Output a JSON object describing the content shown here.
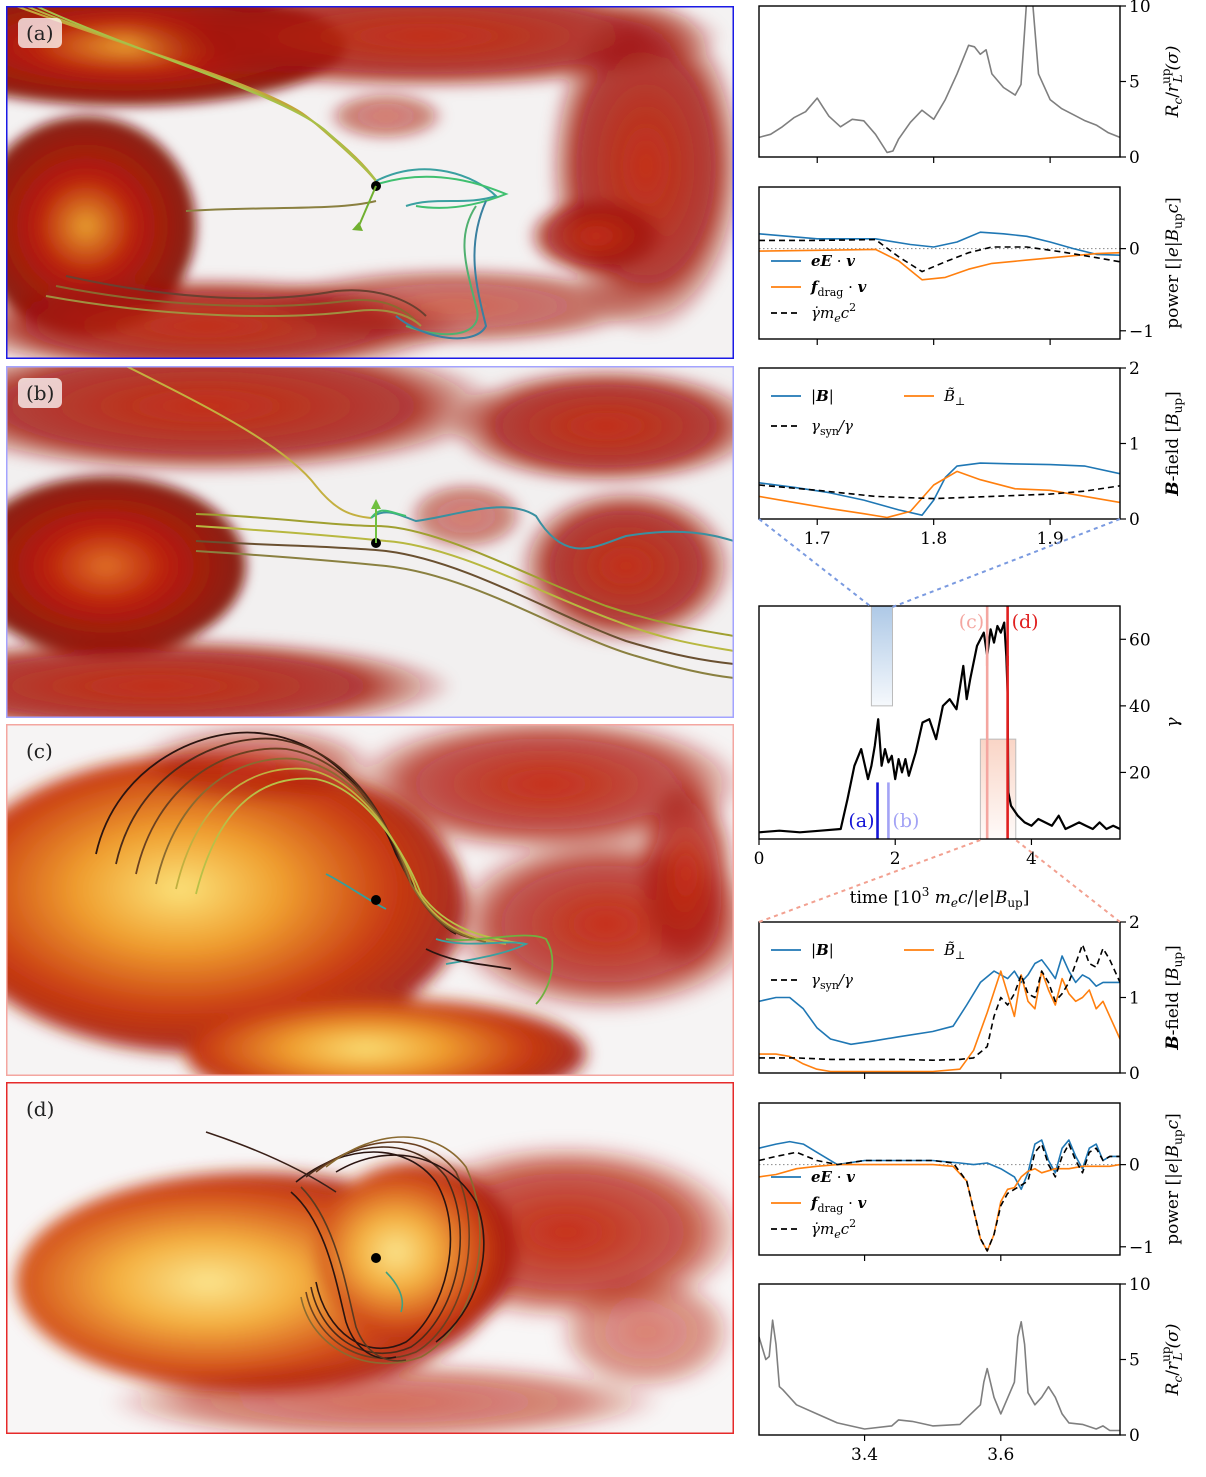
{
  "panels": {
    "a": {
      "label": "(a)",
      "frame_color": "#1a1ae6"
    },
    "b": {
      "label": "(b)",
      "frame_color": "#a3a3ff"
    },
    "c": {
      "label": "(c)",
      "frame_color": "#f4a6a0"
    },
    "d": {
      "label": "(d)",
      "frame_color": "#e62a2a"
    }
  },
  "colors": {
    "blue": "#1f77b4",
    "orange": "#ff7f0e",
    "black": "#000000",
    "gray": "#7f7f7f",
    "marker_a": "#1515d6",
    "marker_b": "#a3a3f5",
    "marker_c": "#f4a6a0",
    "marker_d": "#e02020"
  },
  "chart_data": [
    {
      "id": "rc_top",
      "type": "line",
      "ylabel": "R_c/r_L^up(σ)",
      "ylim": [
        0,
        10
      ],
      "yticks": [
        0,
        5,
        10
      ],
      "xlim": [
        1.65,
        1.96
      ],
      "xticks": [
        1.7,
        1.8,
        1.9
      ],
      "show_xticklabels": false,
      "series": [
        {
          "x": [
            1.65,
            1.66,
            1.67,
            1.68,
            1.69,
            1.7,
            1.705,
            1.71,
            1.72,
            1.73,
            1.74,
            1.75,
            1.76,
            1.765,
            1.77,
            1.78,
            1.79,
            1.8,
            1.81,
            1.82,
            1.83,
            1.835,
            1.84,
            1.845,
            1.85,
            1.86,
            1.87,
            1.875,
            1.88,
            1.885,
            1.89,
            1.9,
            1.91,
            1.92,
            1.93,
            1.94,
            1.95,
            1.96
          ],
          "y": [
            1.3,
            1.5,
            2.0,
            2.6,
            3.0,
            3.9,
            3.3,
            2.7,
            2.0,
            2.5,
            2.4,
            1.5,
            0.3,
            0.4,
            1.2,
            2.3,
            3.1,
            2.5,
            3.8,
            5.5,
            7.4,
            7.3,
            6.8,
            7.1,
            5.5,
            4.6,
            4.1,
            4.8,
            10.5,
            10.2,
            5.5,
            3.8,
            3.2,
            2.8,
            2.4,
            2.1,
            1.6,
            1.3
          ]
        }
      ]
    },
    {
      "id": "power_top",
      "type": "line",
      "ylabel": "power [|e|B_up c]",
      "ylim": [
        -1.1,
        0.75
      ],
      "yticks": [
        -1,
        0
      ],
      "xlim": [
        1.65,
        1.96
      ],
      "xticks": [
        1.7,
        1.8,
        1.9
      ],
      "show_xticklabels": false,
      "zero_line": true,
      "legend": [
        "eE · v",
        "f_drag · v",
        "γ̇ m_e c²"
      ],
      "legend_position": "lower-left",
      "series": [
        {
          "name": "eE · v",
          "x": [
            1.65,
            1.7,
            1.75,
            1.78,
            1.8,
            1.82,
            1.84,
            1.86,
            1.88,
            1.9,
            1.92,
            1.94,
            1.96
          ],
          "y": [
            0.18,
            0.12,
            0.12,
            0.05,
            0.02,
            0.08,
            0.2,
            0.18,
            0.15,
            0.08,
            0.0,
            -0.07,
            -0.08
          ]
        },
        {
          "name": "f_drag · v",
          "x": [
            1.65,
            1.7,
            1.75,
            1.77,
            1.79,
            1.81,
            1.83,
            1.85,
            1.88,
            1.91,
            1.94,
            1.96
          ],
          "y": [
            -0.03,
            -0.02,
            -0.01,
            -0.15,
            -0.38,
            -0.35,
            -0.25,
            -0.18,
            -0.14,
            -0.1,
            -0.06,
            -0.05
          ]
        },
        {
          "name": "γ̇ m_e c²",
          "x": [
            1.65,
            1.7,
            1.75,
            1.77,
            1.79,
            1.81,
            1.83,
            1.85,
            1.88,
            1.91,
            1.94,
            1.96
          ],
          "y": [
            0.1,
            0.1,
            0.11,
            -0.1,
            -0.28,
            -0.16,
            -0.05,
            0.02,
            0.02,
            -0.04,
            -0.11,
            -0.16
          ]
        }
      ]
    },
    {
      "id": "bfield_top",
      "type": "line",
      "ylabel": "B-field [B_up]",
      "ylim": [
        0,
        2
      ],
      "yticks": [
        0,
        1,
        2
      ],
      "xlim": [
        1.65,
        1.96
      ],
      "xticks": [
        1.7,
        1.8,
        1.9
      ],
      "xticklabels": [
        "1.7",
        "1.8",
        "1.9"
      ],
      "legend": [
        "|B|",
        "B̃_⊥",
        "γ_syn/γ"
      ],
      "legend_position": "upper-left",
      "series": [
        {
          "name": "|B|",
          "x": [
            1.65,
            1.68,
            1.71,
            1.74,
            1.77,
            1.79,
            1.8,
            1.81,
            1.82,
            1.84,
            1.87,
            1.9,
            1.93,
            1.96
          ],
          "y": [
            0.48,
            0.42,
            0.35,
            0.25,
            0.12,
            0.05,
            0.25,
            0.55,
            0.7,
            0.74,
            0.73,
            0.72,
            0.7,
            0.6
          ]
        },
        {
          "name": "B̃_⊥",
          "x": [
            1.65,
            1.68,
            1.71,
            1.74,
            1.76,
            1.78,
            1.8,
            1.82,
            1.84,
            1.87,
            1.9,
            1.93,
            1.96
          ],
          "y": [
            0.3,
            0.22,
            0.14,
            0.07,
            0.02,
            0.1,
            0.45,
            0.63,
            0.52,
            0.4,
            0.38,
            0.3,
            0.22
          ]
        },
        {
          "name": "γ_syn/γ",
          "x": [
            1.65,
            1.7,
            1.75,
            1.8,
            1.85,
            1.9,
            1.93,
            1.96
          ],
          "y": [
            0.45,
            0.38,
            0.3,
            0.27,
            0.3,
            0.33,
            0.37,
            0.44
          ]
        }
      ]
    },
    {
      "id": "gamma",
      "type": "line",
      "xlabel": "time [10³ m_e c/|e|B_up]",
      "ylabel": "γ",
      "ylim": [
        0,
        70
      ],
      "yticks": [
        20,
        40,
        60
      ],
      "xlim": [
        0,
        5.3
      ],
      "xticks": [
        0,
        2,
        4
      ],
      "xticklabels": [
        "0",
        "2",
        "4"
      ],
      "markers": [
        {
          "label": "(a)",
          "x": 1.74,
          "y_top": 17,
          "color_key": "marker_a"
        },
        {
          "label": "(b)",
          "x": 1.9,
          "y_top": 17,
          "color_key": "marker_b"
        },
        {
          "label": "(c)",
          "x": 3.35,
          "y_top": 70,
          "color_key": "marker_c"
        },
        {
          "label": "(d)",
          "x": 3.65,
          "y_top": 70,
          "color_key": "marker_d"
        }
      ],
      "highlights": [
        {
          "x0": 1.65,
          "x1": 1.96,
          "y0": 40,
          "y1": 70,
          "color": "#4a86c8"
        },
        {
          "x0": 3.25,
          "x1": 3.77,
          "y0": 0,
          "y1": 30,
          "color": "#f2a180"
        }
      ],
      "series": [
        {
          "x": [
            0,
            0.3,
            0.6,
            0.9,
            1.2,
            1.3,
            1.4,
            1.5,
            1.6,
            1.65,
            1.7,
            1.75,
            1.8,
            1.85,
            1.9,
            1.95,
            2.0,
            2.05,
            2.1,
            2.15,
            2.2,
            2.3,
            2.4,
            2.5,
            2.6,
            2.7,
            2.8,
            2.9,
            3.0,
            3.05,
            3.1,
            3.2,
            3.3,
            3.35,
            3.4,
            3.45,
            3.5,
            3.55,
            3.6,
            3.63,
            3.65,
            3.66,
            3.7,
            3.8,
            3.9,
            4.0,
            4.1,
            4.2,
            4.3,
            4.4,
            4.5,
            4.6,
            4.7,
            4.8,
            4.9,
            5.0,
            5.1,
            5.2,
            5.3
          ],
          "y": [
            2,
            2.5,
            2,
            2.5,
            3,
            12,
            22,
            27,
            18,
            22,
            28,
            36,
            22,
            27,
            23,
            25,
            18,
            24,
            20,
            24,
            19,
            26,
            35,
            36,
            30,
            40,
            42,
            39,
            52,
            42,
            48,
            58,
            62,
            55,
            63,
            59,
            64,
            62,
            65,
            55,
            44,
            14,
            10,
            7,
            5,
            4,
            6,
            5,
            4,
            7,
            3,
            4,
            5,
            4,
            3,
            5,
            3,
            4,
            3
          ]
        }
      ]
    },
    {
      "id": "bfield_bottom",
      "type": "line",
      "ylabel": "B-field [B_up]",
      "ylim": [
        0,
        2
      ],
      "yticks": [
        0,
        1,
        2
      ],
      "xlim": [
        3.245,
        3.775
      ],
      "xticks": [
        3.4,
        3.6
      ],
      "show_xticklabels": false,
      "legend": [
        "|B|",
        "B̃_⊥",
        "γ_syn/γ"
      ],
      "legend_position": "upper-left",
      "series": [
        {
          "name": "|B|",
          "x": [
            3.245,
            3.27,
            3.29,
            3.31,
            3.33,
            3.35,
            3.38,
            3.41,
            3.45,
            3.5,
            3.53,
            3.55,
            3.57,
            3.59,
            3.61,
            3.62,
            3.63,
            3.64,
            3.65,
            3.66,
            3.67,
            3.68,
            3.69,
            3.7,
            3.71,
            3.72,
            3.73,
            3.74,
            3.75,
            3.775
          ],
          "y": [
            0.95,
            1.0,
            1.0,
            0.85,
            0.6,
            0.45,
            0.38,
            0.42,
            0.48,
            0.55,
            0.62,
            0.9,
            1.2,
            1.35,
            1.25,
            1.35,
            1.2,
            1.3,
            1.45,
            1.5,
            1.38,
            1.25,
            1.55,
            1.35,
            1.2,
            1.3,
            1.25,
            1.15,
            1.2,
            1.2
          ]
        },
        {
          "name": "B̃_⊥",
          "x": [
            3.245,
            3.27,
            3.29,
            3.31,
            3.33,
            3.35,
            3.4,
            3.45,
            3.5,
            3.54,
            3.56,
            3.58,
            3.6,
            3.61,
            3.62,
            3.63,
            3.64,
            3.65,
            3.66,
            3.67,
            3.68,
            3.69,
            3.7,
            3.71,
            3.72,
            3.73,
            3.74,
            3.75,
            3.76,
            3.775
          ],
          "y": [
            0.25,
            0.25,
            0.22,
            0.12,
            0.05,
            0.02,
            0.02,
            0.02,
            0.02,
            0.05,
            0.3,
            0.8,
            1.35,
            1.05,
            0.75,
            1.3,
            0.95,
            0.85,
            1.35,
            1.1,
            0.9,
            1.25,
            1.05,
            0.95,
            1.0,
            1.1,
            0.85,
            0.95,
            0.75,
            0.45
          ]
        },
        {
          "name": "γ_syn/γ",
          "x": [
            3.245,
            3.3,
            3.35,
            3.4,
            3.45,
            3.5,
            3.54,
            3.56,
            3.58,
            3.59,
            3.6,
            3.61,
            3.62,
            3.63,
            3.64,
            3.65,
            3.66,
            3.67,
            3.68,
            3.69,
            3.7,
            3.71,
            3.72,
            3.73,
            3.74,
            3.75,
            3.76,
            3.775
          ],
          "y": [
            0.2,
            0.2,
            0.18,
            0.18,
            0.18,
            0.17,
            0.18,
            0.2,
            0.35,
            0.75,
            1.0,
            0.9,
            1.05,
            1.3,
            1.05,
            1.0,
            1.35,
            1.2,
            0.95,
            1.05,
            1.2,
            1.45,
            1.7,
            1.45,
            1.4,
            1.65,
            1.5,
            1.2
          ]
        }
      ]
    },
    {
      "id": "power_bottom",
      "type": "line",
      "ylabel": "power [|e|B_up c]",
      "ylim": [
        -1.1,
        0.75
      ],
      "yticks": [
        -1,
        0
      ],
      "xlim": [
        3.245,
        3.775
      ],
      "xticks": [
        3.4,
        3.6
      ],
      "show_xticklabels": false,
      "zero_line": true,
      "legend": [
        "eE · v",
        "f_drag · v",
        "γ̇ m_e c²"
      ],
      "legend_position": "lower-left",
      "series": [
        {
          "name": "eE · v",
          "x": [
            3.245,
            3.27,
            3.29,
            3.31,
            3.33,
            3.36,
            3.4,
            3.45,
            3.5,
            3.54,
            3.56,
            3.58,
            3.6,
            3.62,
            3.63,
            3.64,
            3.65,
            3.66,
            3.67,
            3.68,
            3.69,
            3.7,
            3.71,
            3.72,
            3.73,
            3.74,
            3.75,
            3.76,
            3.775
          ],
          "y": [
            0.2,
            0.25,
            0.28,
            0.25,
            0.15,
            0.0,
            0.05,
            0.05,
            0.05,
            0.02,
            0.0,
            0.02,
            -0.05,
            -0.15,
            -0.3,
            -0.1,
            0.25,
            0.3,
            0.05,
            -0.1,
            0.2,
            0.3,
            0.1,
            -0.05,
            0.2,
            0.25,
            0.05,
            0.1,
            0.1
          ]
        },
        {
          "name": "f_drag · v",
          "x": [
            3.245,
            3.27,
            3.3,
            3.33,
            3.36,
            3.4,
            3.45,
            3.5,
            3.53,
            3.55,
            3.56,
            3.57,
            3.58,
            3.59,
            3.6,
            3.61,
            3.62,
            3.63,
            3.64,
            3.65,
            3.66,
            3.68,
            3.7,
            3.72,
            3.74,
            3.76,
            3.775
          ],
          "y": [
            -0.15,
            -0.12,
            -0.05,
            -0.02,
            0.0,
            0.0,
            0.0,
            0.0,
            -0.02,
            -0.2,
            -0.55,
            -0.9,
            -1.05,
            -0.85,
            -0.45,
            -0.3,
            -0.28,
            -0.15,
            -0.08,
            -0.05,
            -0.1,
            -0.05,
            -0.05,
            -0.02,
            -0.02,
            -0.02,
            0.0
          ]
        },
        {
          "name": "γ̇ m_e c²",
          "x": [
            3.245,
            3.27,
            3.3,
            3.33,
            3.36,
            3.4,
            3.45,
            3.5,
            3.53,
            3.55,
            3.56,
            3.57,
            3.58,
            3.59,
            3.6,
            3.61,
            3.62,
            3.63,
            3.64,
            3.65,
            3.66,
            3.67,
            3.68,
            3.69,
            3.7,
            3.71,
            3.72,
            3.73,
            3.74,
            3.75,
            3.76,
            3.775
          ],
          "y": [
            0.05,
            0.1,
            0.15,
            0.05,
            0.0,
            0.05,
            0.05,
            0.05,
            0.02,
            -0.2,
            -0.55,
            -0.9,
            -1.05,
            -0.85,
            -0.5,
            -0.35,
            -0.3,
            -0.25,
            -0.2,
            0.15,
            0.25,
            0.0,
            -0.15,
            0.1,
            0.25,
            0.05,
            -0.1,
            0.15,
            0.2,
            0.05,
            0.1,
            0.1
          ]
        }
      ]
    },
    {
      "id": "rc_bottom",
      "type": "line",
      "ylabel": "R_c/r_L^up(σ)",
      "ylim": [
        0,
        10
      ],
      "yticks": [
        0,
        5,
        10
      ],
      "xlim": [
        3.245,
        3.775
      ],
      "xticks": [
        3.4,
        3.6
      ],
      "xticklabels": [
        "3.4",
        "3.6"
      ],
      "series": [
        {
          "x": [
            3.245,
            3.255,
            3.26,
            3.265,
            3.27,
            3.275,
            3.28,
            3.3,
            3.33,
            3.36,
            3.4,
            3.44,
            3.45,
            3.47,
            3.5,
            3.54,
            3.57,
            3.575,
            3.58,
            3.59,
            3.6,
            3.62,
            3.625,
            3.63,
            3.635,
            3.64,
            3.65,
            3.66,
            3.67,
            3.68,
            3.69,
            3.7,
            3.72,
            3.74,
            3.75,
            3.76,
            3.775
          ],
          "y": [
            6.5,
            5.0,
            5.2,
            7.6,
            6.0,
            3.2,
            3.0,
            2.0,
            1.4,
            0.8,
            0.4,
            0.6,
            1.0,
            0.9,
            0.6,
            0.7,
            2.0,
            3.5,
            4.4,
            2.5,
            1.4,
            3.5,
            6.5,
            7.5,
            6.0,
            2.8,
            2.0,
            2.5,
            3.2,
            2.5,
            1.4,
            0.8,
            0.7,
            0.4,
            0.6,
            0.3,
            0.3
          ]
        }
      ]
    }
  ]
}
